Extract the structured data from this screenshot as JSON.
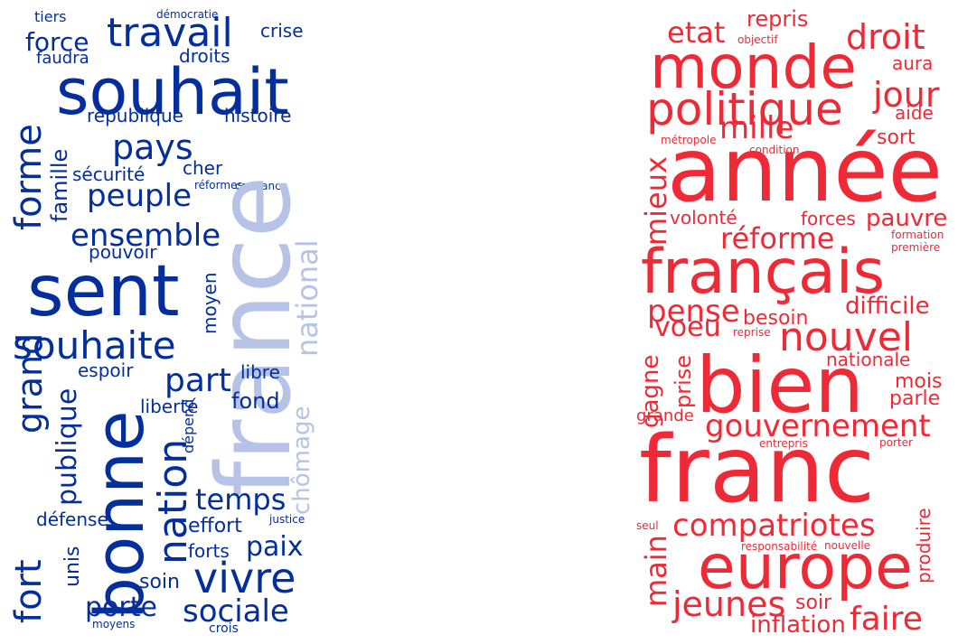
{
  "colors": {
    "blue": "#032e9c",
    "blue_light": "#b7c3e6",
    "red": "#ee2a37"
  },
  "left": {
    "tiers": "tiers",
    "democratie": "démocratie",
    "travail": "travail",
    "crise": "crise",
    "force": "force",
    "faudra": "faudra",
    "droits": "droits",
    "souhait": "souhait",
    "republique": "république",
    "histoire": "histoire",
    "pays": "pays",
    "forme": "forme",
    "famille": "famille",
    "securite": "sécurité",
    "cher": "cher",
    "reformes": "réformes",
    "confiance": "confiance",
    "france": "france",
    "peuple": "peuple",
    "national": "national",
    "ensemble": "ensemble",
    "pouvoir": "pouvoir",
    "sent": "sent",
    "moyen": "moyen",
    "souhaite": "souhaite",
    "chomage": "chômage",
    "espoir": "espoir",
    "part": "part",
    "libre": "libre",
    "publique": "publique",
    "grand": "grand",
    "liberte": "liberté",
    "fond": "fond",
    "depend": "dépend",
    "nation": "nation",
    "bonne": "bonne",
    "temps": "temps",
    "fort": "fort",
    "defense": "défense",
    "effort": "effort",
    "justice": "justice",
    "unis": "unis",
    "forts": "forts",
    "paix": "paix",
    "soin": "soin",
    "vivre": "vivre",
    "porte": "porte",
    "sociale": "sociale",
    "moyens": "moyens",
    "crois": "crois"
  },
  "right": {
    "repris": "repris",
    "etat": "etat",
    "objectif": "objectif",
    "droit": "droit",
    "monde": "monde",
    "aura": "aura",
    "politique": "politique",
    "jour": "jour",
    "aide": "aide",
    "mille": "mille",
    "metropole": "métropole",
    "condition": "condition",
    "sort": "sort",
    "annee": "année",
    "mieux": "mieux",
    "volonte": "volonté",
    "forces": "forces",
    "pauvre": "pauvre",
    "reforme": "réforme",
    "formation": "formation",
    "premiere": "première",
    "francais": "français",
    "difficile": "difficile",
    "pense": "pense",
    "besoin": "besoin",
    "voeu": "voeu",
    "reprise": "reprise",
    "nouvel": "nouvel",
    "nationale": "nationale",
    "mois": "mois",
    "bien": "bien",
    "prise": "prise",
    "gagne": "gagne",
    "parle": "parle",
    "grande": "grande",
    "gouvernement": "gouvernement",
    "entrepris": "entrepris",
    "porter": "porter",
    "franc": "franc",
    "seul": "seul",
    "compatriotes": "compatriotes",
    "responsabilite": "responsabilité",
    "nouvelle": "nouvelle",
    "produire": "produire",
    "main": "main",
    "europe": "europe",
    "jeunes": "jeunes",
    "soir": "soir",
    "faire": "faire",
    "inflation": "inflation"
  }
}
